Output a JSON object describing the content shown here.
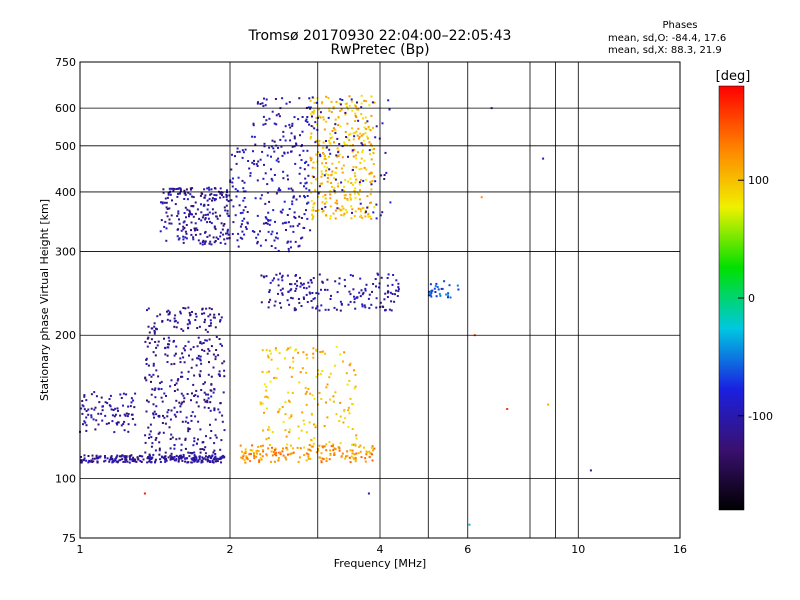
{
  "header": {
    "title": "Tromsø 20170930 22:04:00–22:05:43",
    "subtitle": "RwPretec (Bp)",
    "phase_heading": "Phases",
    "phase_o": "mean, sd,O: -84.4, 17.6",
    "phase_x": "mean, sd,X:  88.3, 21.9"
  },
  "chart_data": {
    "type": "scatter",
    "title": "Tromsø 20170930 22:04:00–22:05:43",
    "subtitle": "RwPretec (Bp)",
    "xlabel": "Frequency [MHz]",
    "ylabel": "Stationary phase Virtual Height [km]",
    "x_scale": "log",
    "y_scale": "log",
    "xlim": [
      1,
      16
    ],
    "ylim": [
      75,
      750
    ],
    "x_ticks": [
      1,
      2,
      4,
      6,
      10,
      16
    ],
    "x_minor_gridlines": [
      3,
      5,
      8,
      9
    ],
    "y_ticks": [
      75,
      100,
      200,
      300,
      400,
      500,
      600,
      750
    ],
    "grid": true,
    "colorbar": {
      "label": "[deg]",
      "range": [
        -180,
        180
      ],
      "ticks": [
        100,
        0,
        -100
      ],
      "colors": [
        "#000000",
        "#3a1070",
        "#1a20e0",
        "#00c8e0",
        "#00e000",
        "#f0f000",
        "#ff8000",
        "#ff0000"
      ]
    },
    "clusters": [
      {
        "name": "",
        "x": [
          1.0,
          1.95
        ],
        "y": [
          108,
          112
        ],
        "phase": -110,
        "n": 260
      },
      {
        "name": "",
        "x": [
          1.0,
          1.3
        ],
        "y": [
          125,
          152
        ],
        "phase": -110,
        "n": 90
      },
      {
        "name": "",
        "x": [
          1.35,
          1.95
        ],
        "y": [
          112,
          230
        ],
        "phase": -115,
        "n": 380
      },
      {
        "name": "",
        "x": [
          1.45,
          2.0
        ],
        "y": [
          310,
          410
        ],
        "phase": -110,
        "n": 230
      },
      {
        "name": "",
        "x": [
          2.0,
          2.9
        ],
        "y": [
          300,
          500
        ],
        "phase": -100,
        "n": 200
      },
      {
        "name": "",
        "x": [
          2.2,
          2.9
        ],
        "y": [
          480,
          630
        ],
        "phase": -105,
        "n": 70
      },
      {
        "name": "",
        "x": [
          2.9,
          3.9
        ],
        "y": [
          350,
          640
        ],
        "phase": 100,
        "n": 330
      },
      {
        "name": "",
        "x": [
          2.8,
          4.2
        ],
        "y": [
          350,
          640
        ],
        "phase": -100,
        "n": 90
      },
      {
        "name": "",
        "x": [
          2.1,
          3.9
        ],
        "y": [
          108,
          118
        ],
        "phase": 120,
        "n": 170
      },
      {
        "name": "",
        "x": [
          2.3,
          3.6
        ],
        "y": [
          115,
          190
        ],
        "phase": 100,
        "n": 170
      },
      {
        "name": "",
        "x": [
          2.3,
          4.4
        ],
        "y": [
          225,
          270
        ],
        "phase": -105,
        "n": 180
      },
      {
        "name": "",
        "x": [
          5.0,
          5.8
        ],
        "y": [
          240,
          262
        ],
        "phase": -60,
        "n": 30
      }
    ],
    "isolated_points": [
      {
        "x": 1.35,
        "y": 93,
        "phase": 170
      },
      {
        "x": 6.2,
        "y": 200,
        "phase": 150
      },
      {
        "x": 6.7,
        "y": 600,
        "phase": -80
      },
      {
        "x": 8.5,
        "y": 470,
        "phase": -100
      },
      {
        "x": 7.2,
        "y": 140,
        "phase": 160
      },
      {
        "x": 8.7,
        "y": 143,
        "phase": 110
      },
      {
        "x": 10.6,
        "y": 104,
        "phase": -110
      },
      {
        "x": 6.05,
        "y": 80,
        "phase": -30
      },
      {
        "x": 3.8,
        "y": 93,
        "phase": -100
      },
      {
        "x": 6.4,
        "y": 390,
        "phase": 120
      }
    ]
  }
}
